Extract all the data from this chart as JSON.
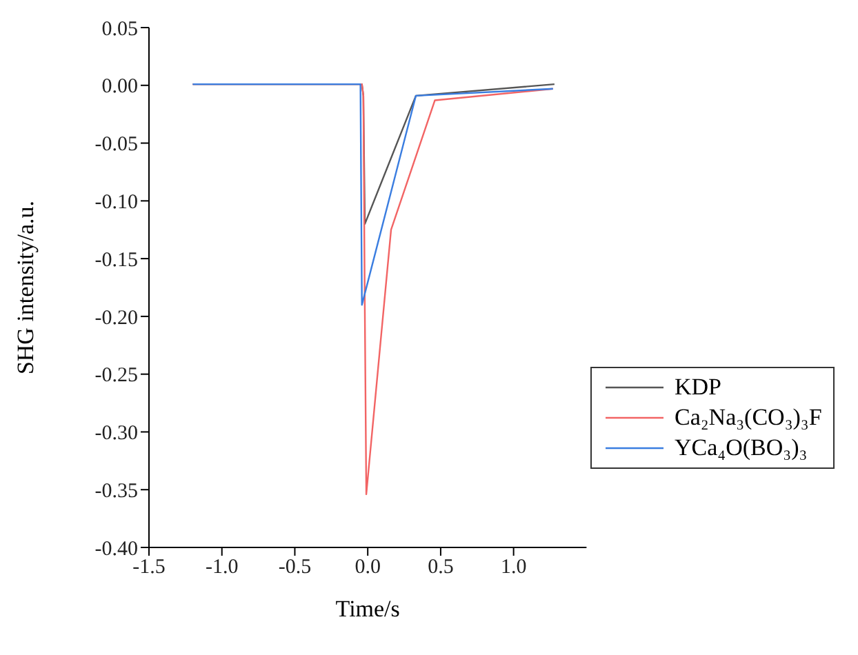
{
  "chart_data": {
    "type": "line",
    "xlabel": "Time/s",
    "ylabel": "SHG intensity/a.u.",
    "xlim": [
      -1.5,
      1.5
    ],
    "ylim": [
      -0.4,
      0.05
    ],
    "xticks": [
      {
        "value": -1.5,
        "label": "-1.5"
      },
      {
        "value": -1,
        "label": "-1.0"
      },
      {
        "value": -0.5,
        "label": "-0.5"
      },
      {
        "value": 0,
        "label": "0.0"
      },
      {
        "value": 0.5,
        "label": "0.5"
      },
      {
        "value": 1,
        "label": "1.0"
      }
    ],
    "yticks": [
      0.05,
      {
        "value": 0,
        "label": "0.00"
      },
      -0.05,
      {
        "value": -0.1,
        "label": "-0.10"
      },
      -0.15,
      {
        "value": -0.2,
        "label": "-0.20"
      },
      -0.25,
      {
        "value": -0.3,
        "label": "-0.30"
      },
      -0.35,
      {
        "value": -0.4,
        "label": "-0.40"
      }
    ],
    "legend": "right",
    "grid": false,
    "marker": "none",
    "line_style": "solid",
    "series": [
      {
        "name": "KDP",
        "color": "#555555",
        "x": [
          -1.2,
          -0.04,
          -0.03,
          -0.02,
          0.33,
          1.28
        ],
        "values": [
          0.001,
          0.001,
          -0.009,
          -0.12,
          -0.009,
          0.001
        ]
      },
      {
        "name": "Ca₂Na₃(CO₃)₃F",
        "color": "#f26464",
        "x": [
          -1.2,
          -0.04,
          -0.03,
          -0.02,
          -0.01,
          0.16,
          0.46,
          1.27
        ],
        "values": [
          0.001,
          0.001,
          -0.009,
          -0.195,
          -0.354,
          -0.125,
          -0.013,
          -0.003
        ]
      },
      {
        "name": "YCa₄O(BO₃)₃",
        "color": "#3a7de0",
        "x": [
          -1.2,
          -0.05,
          -0.04,
          0.33,
          1.27
        ],
        "values": [
          0.001,
          0.001,
          -0.19,
          -0.009,
          -0.003
        ]
      }
    ]
  }
}
